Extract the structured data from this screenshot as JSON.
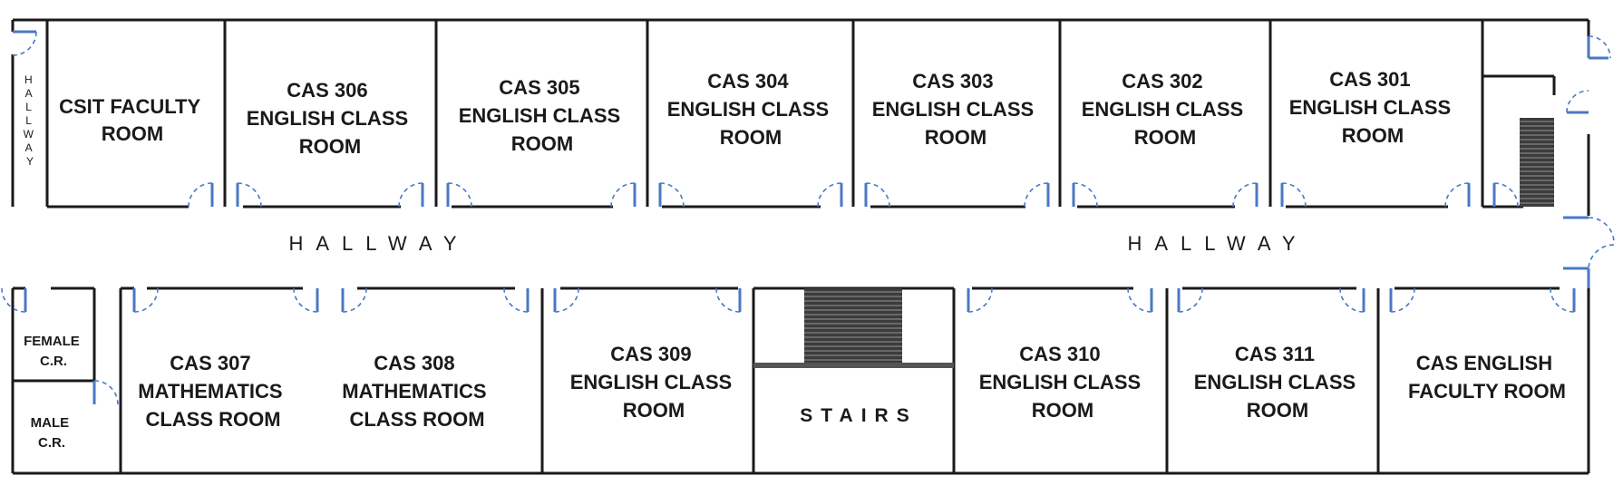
{
  "rooms": {
    "csit_faculty": [
      "CSIT FACULTY",
      "ROOM"
    ],
    "cas306": [
      "CAS 306",
      "ENGLISH CLASS",
      "ROOM"
    ],
    "cas305": [
      "CAS 305",
      "ENGLISH CLASS",
      "ROOM"
    ],
    "cas304": [
      "CAS 304",
      "ENGLISH CLASS",
      "ROOM"
    ],
    "cas303": [
      "CAS 303",
      "ENGLISH CLASS",
      "ROOM"
    ],
    "cas302": [
      "CAS 302",
      "ENGLISH CLASS",
      "ROOM"
    ],
    "cas301": [
      "CAS 301",
      "ENGLISH CLASS",
      "ROOM"
    ],
    "female_cr": [
      "FEMALE",
      "C.R."
    ],
    "male_cr": [
      "MALE",
      "C.R."
    ],
    "cas307": [
      "CAS 307",
      "MATHEMATICS",
      "CLASS ROOM"
    ],
    "cas308": [
      "CAS 308",
      "MATHEMATICS",
      "CLASS ROOM"
    ],
    "cas309": [
      "CAS 309",
      "ENGLISH CLASS",
      "ROOM"
    ],
    "cas310": [
      "CAS 310",
      "ENGLISH CLASS",
      "ROOM"
    ],
    "cas311": [
      "CAS 311",
      "ENGLISH CLASS",
      "ROOM"
    ],
    "english_faculty": [
      "CAS ENGLISH",
      "FACULTY ROOM"
    ]
  },
  "labels": {
    "stairs": "STAIRS",
    "hallway_left": "HALLWAY",
    "hallway_right": "HALLWAY",
    "hallway_vertical": [
      "H",
      "A",
      "L",
      "L",
      "W",
      "A",
      "Y"
    ]
  },
  "colors": {
    "wall": "#1a1a1a",
    "door": "#4a78c4",
    "stairs_fill": "#3c3c3c"
  }
}
